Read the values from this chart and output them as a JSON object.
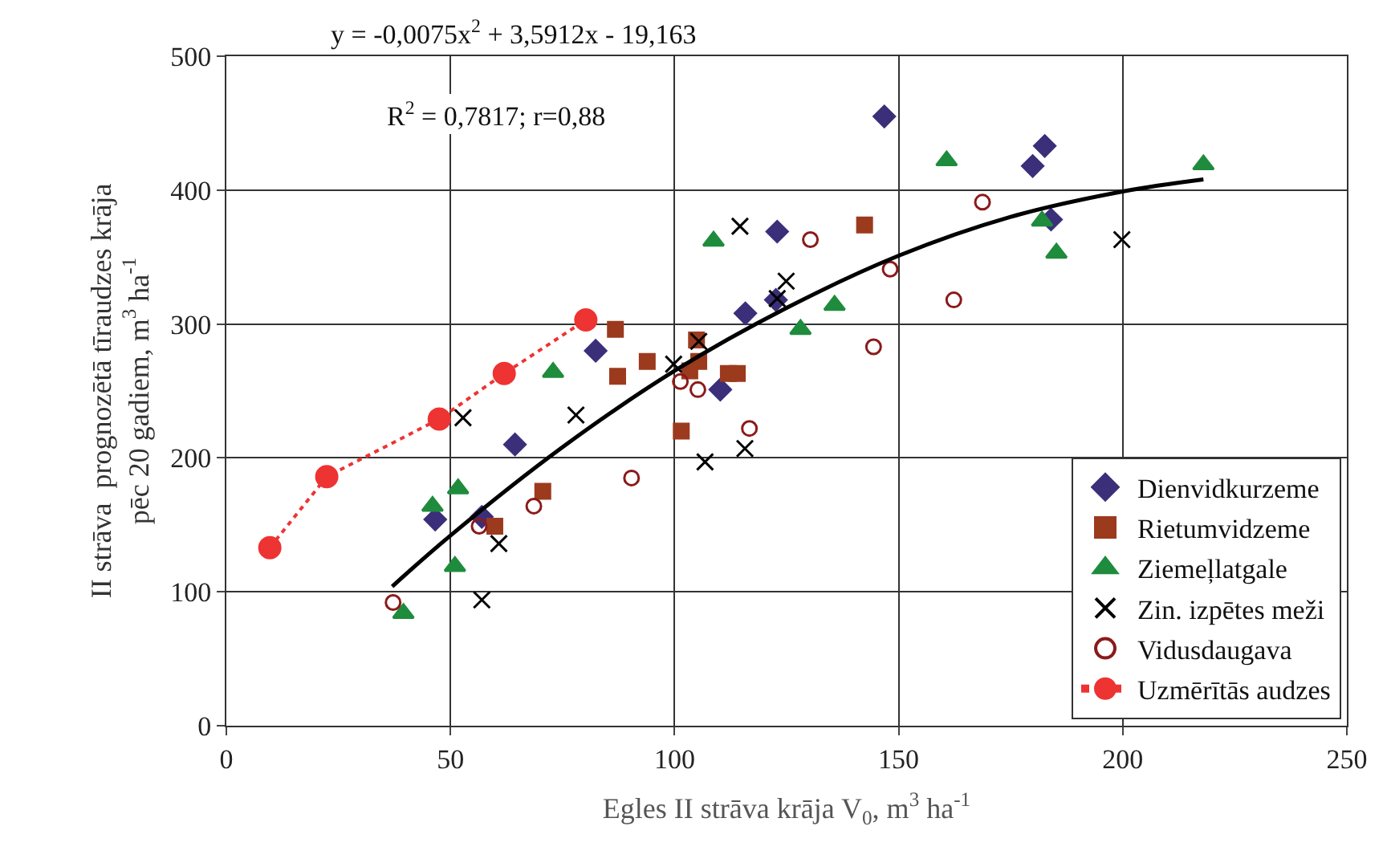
{
  "chart_data": {
    "type": "scatter",
    "xlabel": "Egles II strāva krāja V$_{0}$, m$^{3}$ ha$^{-1}$",
    "ylabel": "II strāva  prognozētā tīraudzes krāja\npēc 20 gadiem, m$^{3}$ ha$^{-1}$",
    "xlim": [
      0,
      250
    ],
    "xticks": [
      0,
      50,
      100,
      150,
      200,
      250
    ],
    "ylim": [
      0,
      500
    ],
    "yticks": [
      0,
      100,
      200,
      300,
      400,
      500
    ],
    "grid": true,
    "legend": "bottom right",
    "annotations": [
      "y = -0,0075x$^{2}$ + 3,5912x - 19,163",
      "R$^{2}$ = 0,7817; r=0,88"
    ],
    "series": [
      {
        "name": "Dienvidkurzeme",
        "marker": "diamond",
        "color": "#3b2f7a",
        "x": [
          46.6,
          57,
          64.4,
          82.4,
          110.2,
          115.8,
          122.6,
          122.9,
          146.8,
          179.9,
          182.6,
          184
        ],
        "values": [
          154,
          156,
          210,
          280,
          251,
          308,
          318,
          369,
          455,
          418,
          433,
          378
        ]
      },
      {
        "name": "Rietumvidzeme",
        "marker": "square",
        "color": "#9c3a1e",
        "x": [
          59.9,
          70.6,
          86.8,
          87.3,
          93.9,
          101.5,
          103.4,
          104.9,
          105.4,
          112,
          114,
          142.4
        ],
        "values": [
          149,
          175,
          296,
          261,
          272,
          220,
          265,
          288,
          272,
          263,
          263,
          374
        ]
      },
      {
        "name": "Ziemeļlatgale",
        "marker": "triangle",
        "color": "#1e8c3c",
        "x": [
          39.5,
          46,
          51,
          51.7,
          72.9,
          108.7,
          128.1,
          135.7,
          160.7,
          182,
          185.2,
          218
        ],
        "values": [
          84,
          164,
          119,
          177,
          264,
          362,
          296,
          314,
          422,
          377,
          353,
          419
        ]
      },
      {
        "name": "Zin. izpētes meži",
        "marker": "cross",
        "color": "#000000",
        "x": [
          52.8,
          57,
          60.8,
          78,
          99.8,
          105.4,
          106.8,
          114.6,
          115.7,
          122.9,
          124.9,
          199.8
        ],
        "values": [
          230,
          94,
          136,
          232,
          270,
          287,
          197,
          373,
          207,
          319,
          332,
          363
        ]
      },
      {
        "name": "Vidusdaugava",
        "marker": "circle",
        "color": "#8b1a1a",
        "x": [
          37.2,
          56.4,
          68.6,
          90.4,
          101.3,
          105.2,
          116.7,
          130.3,
          144.4,
          148.1,
          162.3,
          168.7
        ],
        "values": [
          92,
          149,
          164,
          185,
          257,
          251,
          222,
          363,
          283,
          341,
          318,
          391
        ]
      },
      {
        "name": "Uzmērītās audzes",
        "type": "line",
        "marker": "circle",
        "line_style": "dotted",
        "color": "#ee3333",
        "x": [
          9.7,
          22.4,
          47.5,
          62,
          80.2
        ],
        "values": [
          133,
          186,
          229,
          263,
          303
        ]
      },
      {
        "type": "line",
        "marker": "none",
        "line_style": "solid",
        "color": "#000000",
        "x": [
          37,
          50,
          75,
          100,
          125,
          150,
          175,
          200,
          218
        ],
        "values": [
          104,
          142,
          208,
          265,
          312,
          351,
          380,
          399,
          408
        ]
      }
    ]
  }
}
